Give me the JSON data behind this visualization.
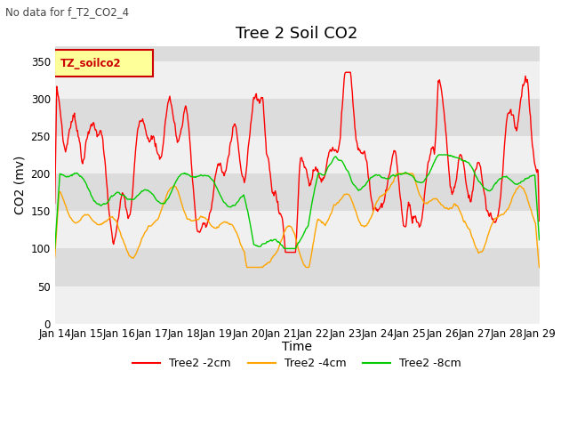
{
  "title": "Tree 2 Soil CO2",
  "suptitle": "No data for f_T2_CO2_4",
  "ylabel": "CO2 (mv)",
  "xlabel": "Time",
  "legend_label": "TZ_soilco2",
  "yticks": [
    0,
    50,
    100,
    150,
    200,
    250,
    300,
    350
  ],
  "ylim": [
    0,
    370
  ],
  "xtick_labels": [
    "Jan 14",
    "Jan 15",
    "Jan 16",
    "Jan 17",
    "Jan 18",
    "Jan 19",
    "Jan 20",
    "Jan 21",
    "Jan 22",
    "Jan 23",
    "Jan 24",
    "Jan 25",
    "Jan 26",
    "Jan 27",
    "Jan 28",
    "Jan 29"
  ],
  "series_labels": [
    "Tree2 -2cm",
    "Tree2 -4cm",
    "Tree2 -8cm"
  ],
  "series_colors": [
    "#ff0000",
    "#ffa500",
    "#00cc00"
  ],
  "background_color": "#ffffff",
  "plot_bg_light": "#f0f0f0",
  "plot_bg_dark": "#dcdcdc",
  "title_fontsize": 13,
  "axis_fontsize": 10,
  "tick_fontsize": 8.5
}
